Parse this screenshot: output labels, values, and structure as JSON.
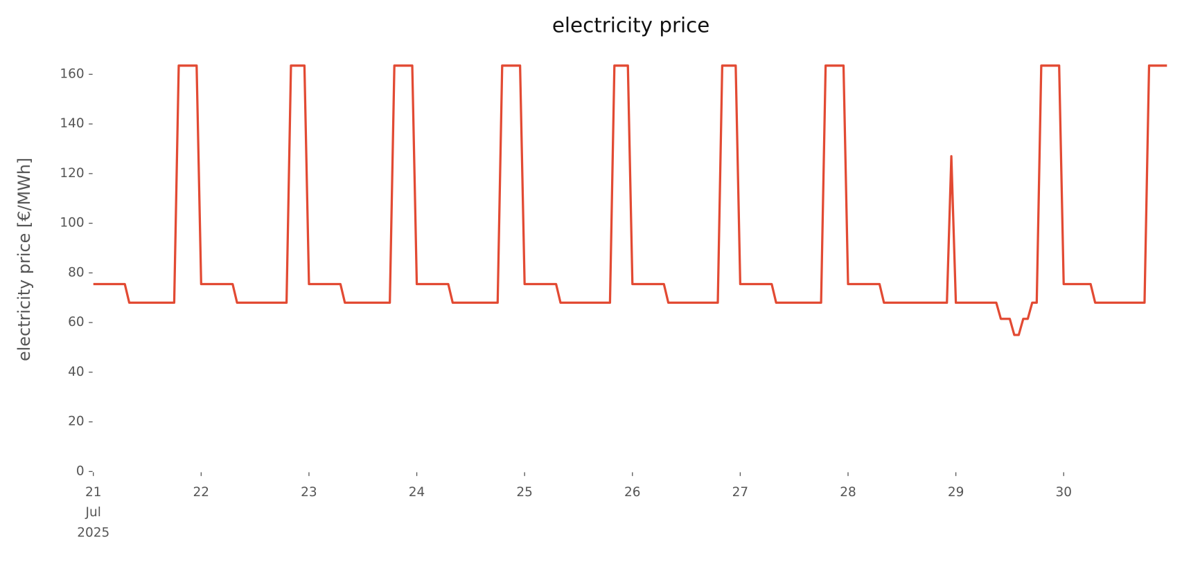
{
  "chart_data": {
    "type": "line",
    "title": "electricity price",
    "y_label": "electricity price [€/MWh]",
    "series": [
      {
        "color": "#e24a33",
        "x": [
          21,
          21.292,
          21.333,
          21.75,
          21.792,
          21.958,
          22,
          22.292,
          22.333,
          22.792,
          22.833,
          22.958,
          23,
          23.292,
          23.333,
          23.75,
          23.792,
          23.958,
          24,
          24.292,
          24.333,
          24.75,
          24.792,
          24.958,
          25,
          25.292,
          25.333,
          25.792,
          25.833,
          25.958,
          26,
          26.292,
          26.333,
          26.792,
          26.833,
          26.958,
          27,
          27.292,
          27.333,
          27.75,
          27.792,
          27.958,
          28,
          28.292,
          28.333,
          28.917,
          28.958,
          29,
          29.375,
          29.417,
          29.5,
          29.542,
          29.583,
          29.625,
          29.667,
          29.708,
          29.75,
          29.792,
          29.958,
          30,
          30.25,
          30.292,
          30.75,
          30.792,
          30.958
        ],
        "values": [
          75.5,
          75.5,
          68,
          68,
          163.5,
          163.5,
          75.5,
          75.5,
          68,
          68,
          163.5,
          163.5,
          75.5,
          75.5,
          68,
          68,
          163.5,
          163.5,
          75.5,
          75.5,
          68,
          68,
          163.5,
          163.5,
          75.5,
          75.5,
          68,
          68,
          163.5,
          163.5,
          75.5,
          75.5,
          68,
          68,
          163.5,
          163.5,
          75.5,
          75.5,
          68,
          68,
          163.5,
          163.5,
          75.5,
          75.5,
          68,
          68,
          127,
          68,
          68,
          61.5,
          61.5,
          55,
          55,
          61.5,
          61.5,
          68,
          68,
          163.5,
          163.5,
          75.5,
          75.5,
          68,
          68,
          163.5,
          163.5
        ]
      }
    ],
    "xlim": [
      21,
      30.958
    ],
    "xticks": [
      {
        "value": 21,
        "label": "21\nJul\n2025"
      },
      22,
      23,
      24,
      25,
      26,
      27,
      28,
      29,
      30
    ],
    "ylim": [
      0,
      166
    ],
    "yticks": [
      0,
      20,
      40,
      60,
      80,
      100,
      120,
      140,
      160
    ]
  }
}
